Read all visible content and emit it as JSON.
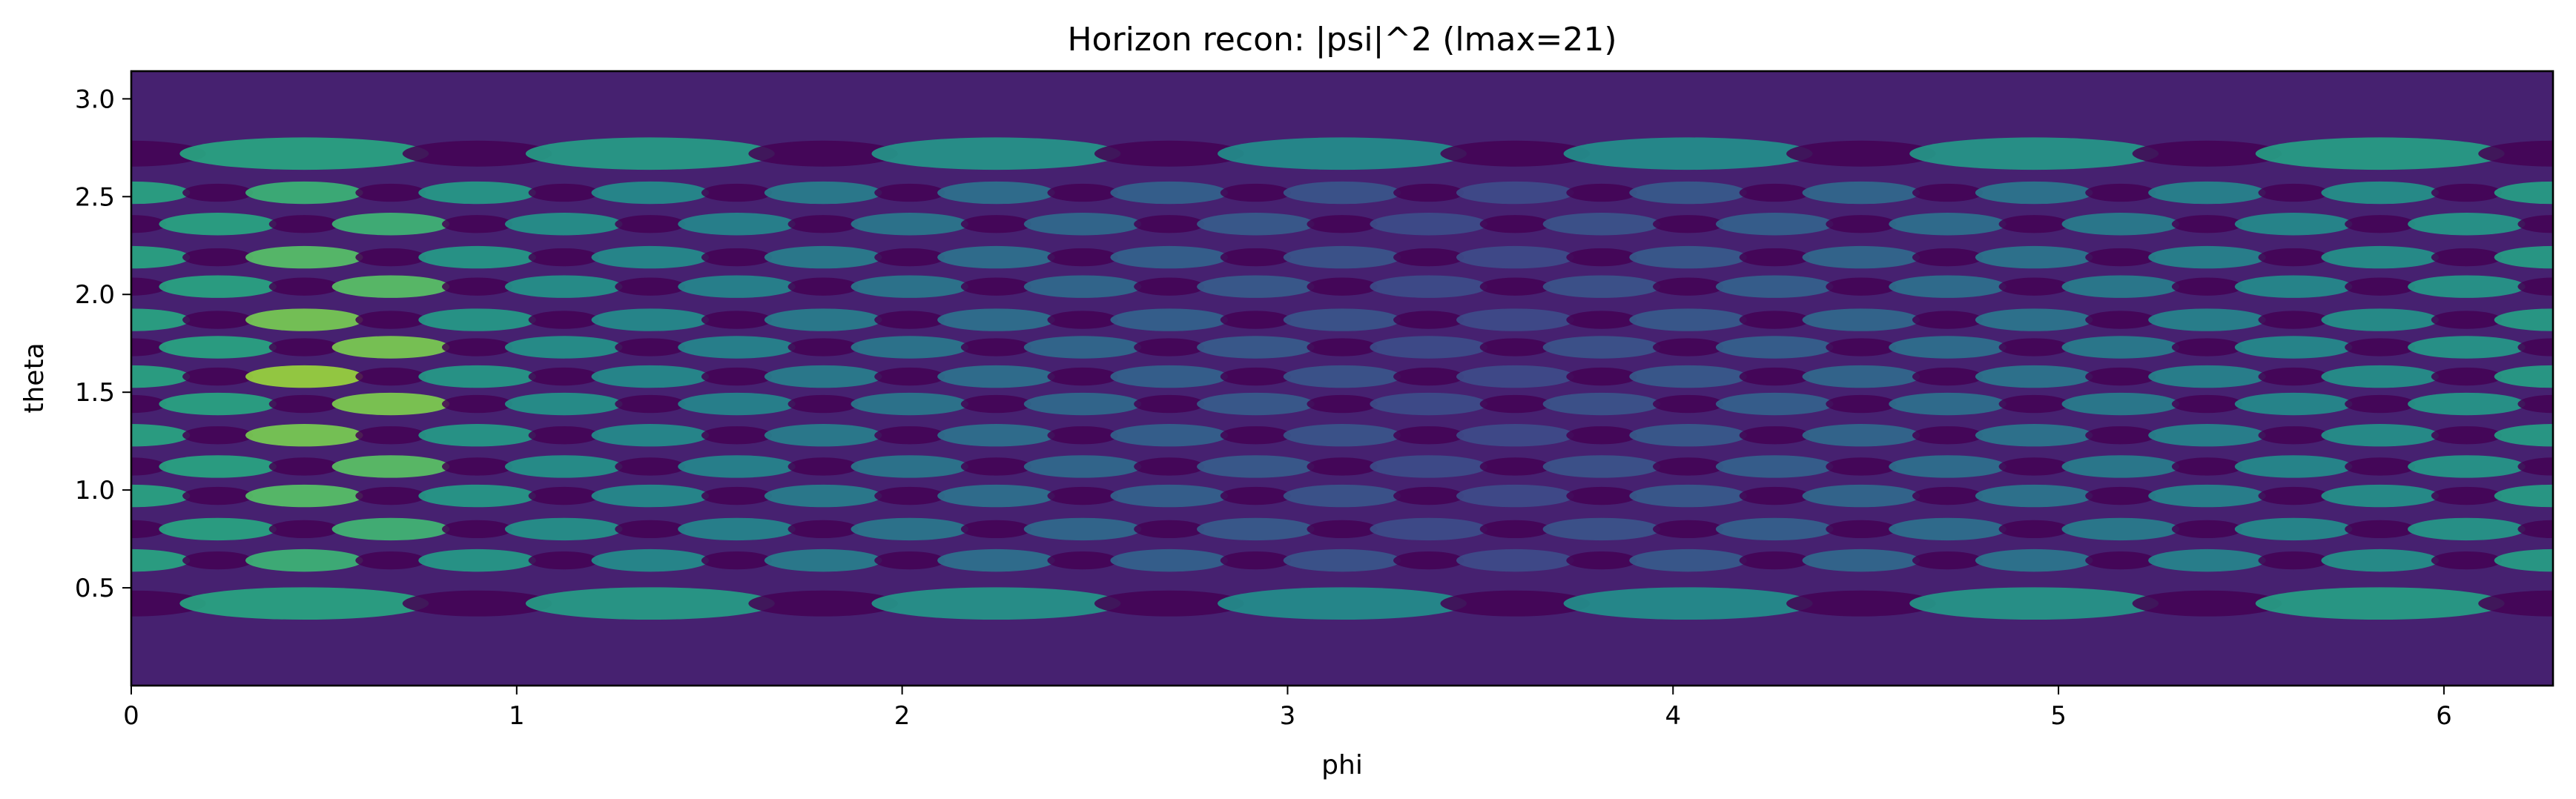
{
  "chart_data": {
    "type": "heatmap",
    "title": "Horizon recon: |psi|^2 (lmax=21)",
    "xlabel": "phi",
    "ylabel": "theta",
    "xlim": [
      0,
      6.283
    ],
    "ylim": [
      0,
      3.1416
    ],
    "xticks": [
      0,
      1,
      2,
      3,
      4,
      5,
      6
    ],
    "xtick_labels": [
      "0",
      "1",
      "2",
      "3",
      "4",
      "5",
      "6"
    ],
    "yticks": [
      0.5,
      1.0,
      1.5,
      2.0,
      2.5,
      3.0
    ],
    "ytick_labels": [
      "0.5",
      "1.0",
      "1.5",
      "2.0",
      "2.5",
      "3.0"
    ],
    "colormap": "viridis",
    "grid": false,
    "legend": "none",
    "pattern": {
      "theta_stripe_centers": [
        0.42,
        0.64,
        0.8,
        0.97,
        1.12,
        1.28,
        1.44,
        1.58,
        1.73,
        1.87,
        2.04,
        2.19,
        2.36,
        2.52,
        2.72
      ],
      "phi_lobes_outer": 14,
      "phi_lobes_inner": 7,
      "brightest_phi": 0.5,
      "dimmest_phi": 3.5
    }
  }
}
